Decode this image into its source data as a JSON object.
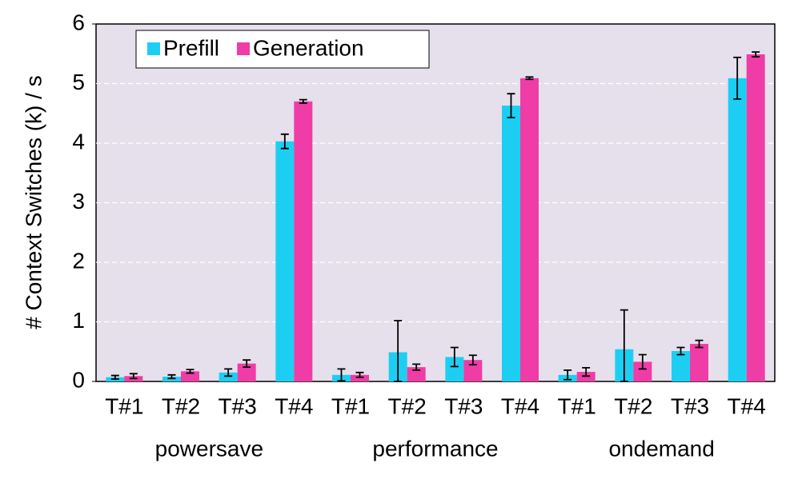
{
  "chart_data": {
    "type": "bar",
    "y_label": "# Context Switches (k) / s",
    "categories": [
      "T#1",
      "T#2",
      "T#3",
      "T#4",
      "T#1",
      "T#2",
      "T#3",
      "T#4",
      "T#1",
      "T#2",
      "T#3",
      "T#4"
    ],
    "groups": [
      "powersave",
      "performance",
      "ondemand"
    ],
    "series": [
      {
        "name": "Prefill",
        "color": "#1ccff2",
        "values": [
          0.07,
          0.08,
          0.15,
          4.03,
          0.11,
          0.49,
          0.41,
          4.63,
          0.11,
          0.54,
          0.51,
          5.09
        ],
        "errors": [
          0.03,
          0.03,
          0.06,
          0.12,
          0.1,
          0.53,
          0.16,
          0.2,
          0.08,
          0.66,
          0.06,
          0.35
        ]
      },
      {
        "name": "Generation",
        "color": "#f03ca6",
        "values": [
          0.09,
          0.17,
          0.3,
          4.7,
          0.11,
          0.24,
          0.36,
          5.09,
          0.16,
          0.33,
          0.63,
          5.49
        ],
        "errors": [
          0.04,
          0.03,
          0.06,
          0.03,
          0.04,
          0.05,
          0.08,
          0.02,
          0.07,
          0.12,
          0.06,
          0.04
        ]
      }
    ],
    "ylim": [
      0,
      6
    ],
    "yticks": [
      0,
      1,
      2,
      3,
      4,
      5,
      6
    ],
    "grid": true,
    "legend": "upper left"
  }
}
